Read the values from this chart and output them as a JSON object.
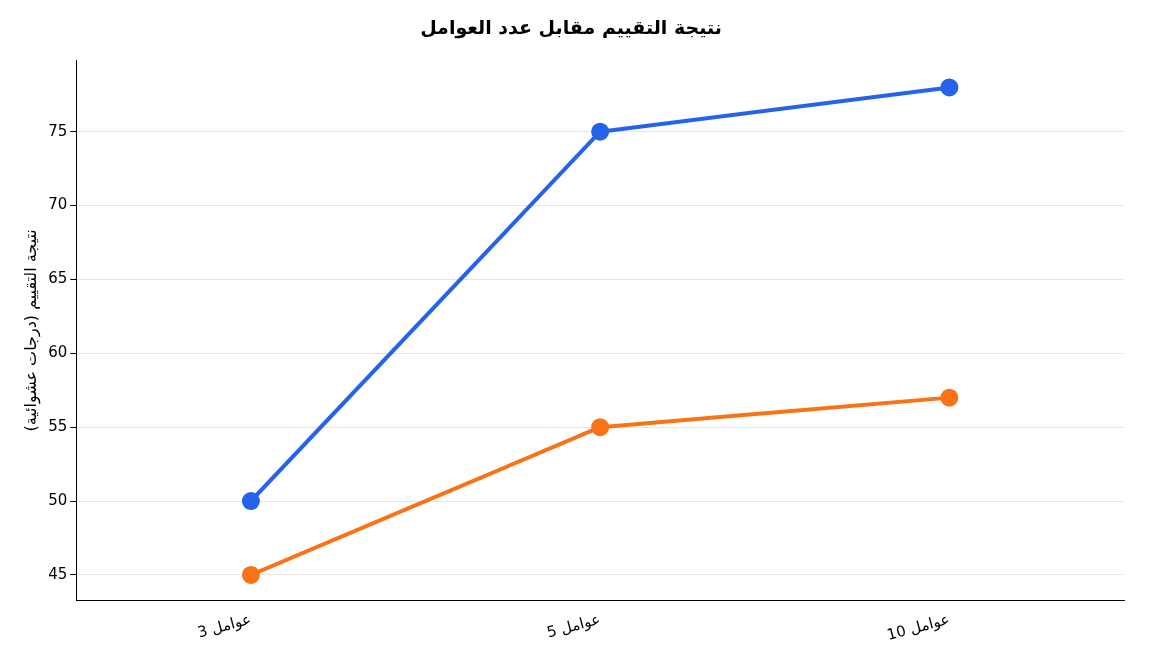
{
  "chart_data": {
    "type": "line",
    "title": "نتيجة التقييم مقابل عدد العوامل",
    "ylabel": "نتيجة التقييم (درجات عشوائية)",
    "categories": [
      "3 عوامل",
      "5 عوامل",
      "10 عوامل"
    ],
    "series": [
      {
        "color": "#2563eb",
        "values": [
          50,
          75,
          78
        ]
      },
      {
        "color": "#f97316",
        "values": [
          45,
          55,
          57
        ]
      }
    ],
    "ylim": [
      43.3,
      79.8
    ],
    "yticks": [
      45,
      50,
      55,
      60,
      65,
      70,
      75
    ],
    "grid": "y",
    "marker": "circle",
    "line_style": "solid"
  }
}
